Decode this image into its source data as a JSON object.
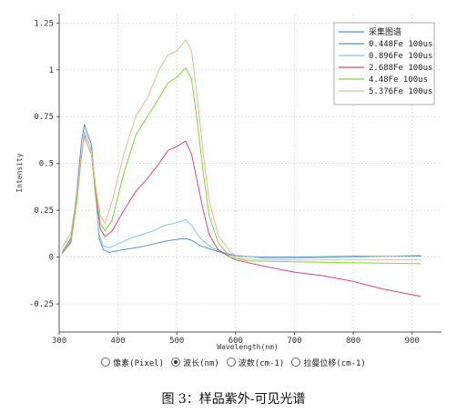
{
  "chart_data": {
    "type": "line",
    "title": "",
    "xlabel": "Wavelength(nm)",
    "ylabel": "Intensity",
    "xlim": [
      300,
      950
    ],
    "ylim": [
      -0.4,
      1.3
    ],
    "x_ticks": [
      300,
      400,
      500,
      600,
      700,
      800,
      900
    ],
    "y_ticks": [
      -0.25,
      0,
      0.25,
      0.5,
      0.75,
      1,
      1.25
    ],
    "y_tick_labels": [
      "-0.25",
      "0",
      "0.25",
      "0.5",
      "0.75",
      "1",
      "1.25"
    ],
    "grid": true,
    "legend_position": "top-right",
    "legend_title": "采集图谱",
    "legend_title_color": "#4a90d9",
    "series": [
      {
        "name": "0.448Fe 100us",
        "color": "#5b8fd6",
        "points": [
          [
            305,
            0.03
          ],
          [
            320,
            0.1
          ],
          [
            330,
            0.35
          ],
          [
            338,
            0.62
          ],
          [
            343,
            0.71
          ],
          [
            348,
            0.66
          ],
          [
            355,
            0.6
          ],
          [
            362,
            0.35
          ],
          [
            368,
            0.1
          ],
          [
            375,
            0.04
          ],
          [
            385,
            0.025
          ],
          [
            400,
            0.035
          ],
          [
            420,
            0.045
          ],
          [
            440,
            0.055
          ],
          [
            460,
            0.07
          ],
          [
            480,
            0.085
          ],
          [
            500,
            0.095
          ],
          [
            515,
            0.1
          ],
          [
            525,
            0.09
          ],
          [
            540,
            0.06
          ],
          [
            560,
            0.04
          ],
          [
            580,
            0.02
          ],
          [
            600,
            0.005
          ],
          [
            650,
            0.0
          ],
          [
            700,
            0.0
          ],
          [
            800,
            0.005
          ],
          [
            915,
            0.005
          ]
        ]
      },
      {
        "name": "0.896Fe 100us",
        "color": "#7fc8e8",
        "points": [
          [
            305,
            0.02
          ],
          [
            320,
            0.08
          ],
          [
            330,
            0.3
          ],
          [
            338,
            0.55
          ],
          [
            343,
            0.67
          ],
          [
            348,
            0.63
          ],
          [
            355,
            0.57
          ],
          [
            362,
            0.33
          ],
          [
            368,
            0.12
          ],
          [
            375,
            0.06
          ],
          [
            385,
            0.05
          ],
          [
            400,
            0.07
          ],
          [
            420,
            0.1
          ],
          [
            440,
            0.12
          ],
          [
            460,
            0.14
          ],
          [
            480,
            0.17
          ],
          [
            495,
            0.18
          ],
          [
            505,
            0.19
          ],
          [
            515,
            0.2
          ],
          [
            525,
            0.17
          ],
          [
            540,
            0.1
          ],
          [
            560,
            0.05
          ],
          [
            580,
            0.025
          ],
          [
            600,
            0.01
          ],
          [
            650,
            -0.005
          ],
          [
            700,
            -0.005
          ],
          [
            800,
            0.0
          ],
          [
            915,
            0.01
          ]
        ]
      },
      {
        "name": "2.688Fe 100us",
        "color": "#e0457a",
        "points": [
          [
            305,
            0.02
          ],
          [
            320,
            0.08
          ],
          [
            330,
            0.3
          ],
          [
            338,
            0.55
          ],
          [
            343,
            0.65
          ],
          [
            348,
            0.6
          ],
          [
            355,
            0.55
          ],
          [
            362,
            0.33
          ],
          [
            370,
            0.15
          ],
          [
            378,
            0.11
          ],
          [
            390,
            0.14
          ],
          [
            410,
            0.25
          ],
          [
            430,
            0.35
          ],
          [
            450,
            0.42
          ],
          [
            470,
            0.5
          ],
          [
            485,
            0.57
          ],
          [
            500,
            0.59
          ],
          [
            515,
            0.62
          ],
          [
            525,
            0.55
          ],
          [
            535,
            0.4
          ],
          [
            545,
            0.25
          ],
          [
            555,
            0.12
          ],
          [
            570,
            0.04
          ],
          [
            590,
            0.0
          ],
          [
            600,
            -0.015
          ],
          [
            650,
            -0.05
          ],
          [
            700,
            -0.08
          ],
          [
            750,
            -0.1
          ],
          [
            800,
            -0.13
          ],
          [
            850,
            -0.17
          ],
          [
            915,
            -0.21
          ]
        ]
      },
      {
        "name": "4.48Fe 100us",
        "color": "#7dd63a",
        "points": [
          [
            305,
            0.03
          ],
          [
            320,
            0.09
          ],
          [
            330,
            0.3
          ],
          [
            338,
            0.55
          ],
          [
            343,
            0.64
          ],
          [
            348,
            0.6
          ],
          [
            355,
            0.55
          ],
          [
            362,
            0.35
          ],
          [
            370,
            0.18
          ],
          [
            378,
            0.14
          ],
          [
            390,
            0.2
          ],
          [
            410,
            0.45
          ],
          [
            430,
            0.65
          ],
          [
            450,
            0.75
          ],
          [
            470,
            0.85
          ],
          [
            485,
            0.93
          ],
          [
            500,
            0.96
          ],
          [
            515,
            1.01
          ],
          [
            525,
            0.95
          ],
          [
            535,
            0.72
          ],
          [
            545,
            0.45
          ],
          [
            555,
            0.22
          ],
          [
            570,
            0.08
          ],
          [
            590,
            0.0
          ],
          [
            620,
            -0.02
          ],
          [
            700,
            -0.025
          ],
          [
            800,
            -0.03
          ],
          [
            915,
            -0.035
          ]
        ]
      },
      {
        "name": "5.376Fe 100us",
        "color": "#f2b690",
        "points": [
          [
            305,
            0.05
          ],
          [
            320,
            0.13
          ],
          [
            330,
            0.33
          ],
          [
            338,
            0.56
          ],
          [
            343,
            0.64
          ],
          [
            348,
            0.6
          ],
          [
            355,
            0.56
          ],
          [
            362,
            0.38
          ],
          [
            370,
            0.22
          ],
          [
            378,
            0.18
          ],
          [
            390,
            0.3
          ],
          [
            410,
            0.55
          ],
          [
            430,
            0.75
          ],
          [
            450,
            0.85
          ],
          [
            470,
            1.0
          ],
          [
            485,
            1.08
          ],
          [
            500,
            1.1
          ],
          [
            515,
            1.16
          ],
          [
            525,
            1.1
          ],
          [
            535,
            0.85
          ],
          [
            545,
            0.55
          ],
          [
            555,
            0.3
          ],
          [
            570,
            0.12
          ],
          [
            590,
            0.03
          ],
          [
            610,
            -0.01
          ],
          [
            700,
            -0.015
          ],
          [
            800,
            -0.015
          ],
          [
            915,
            -0.015
          ]
        ]
      }
    ]
  },
  "radio_options": [
    {
      "label": "像素(Pixel)",
      "selected": false
    },
    {
      "label": "波长(nm)",
      "selected": true
    },
    {
      "label": "波数(cm-1)",
      "selected": false
    },
    {
      "label": "拉曼位移(cm-1)",
      "selected": false
    }
  ],
  "caption": "图 3：样品紫外-可见光谱"
}
